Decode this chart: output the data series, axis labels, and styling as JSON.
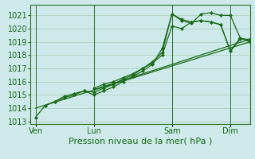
{
  "background_color": "#cde9e9",
  "grid_color": "#aaccbb",
  "line_color": "#1a6b1a",
  "marker_color": "#1a6b1a",
  "xlabel": "Pression niveau de la mer( hPa )",
  "xlabel_fontsize": 8,
  "ylabel_fontsize": 7,
  "ylim": [
    1012.8,
    1021.8
  ],
  "yticks": [
    1013,
    1014,
    1015,
    1016,
    1017,
    1018,
    1019,
    1020,
    1021
  ],
  "xtick_labels": [
    "Ven",
    "Lun",
    "Sam",
    "Dim"
  ],
  "xtick_positions": [
    0,
    36,
    84,
    120
  ],
  "xlim": [
    -3,
    132
  ],
  "vline_positions": [
    0,
    36,
    84,
    120
  ],
  "series": [
    {
      "x": [
        0,
        6,
        12,
        18,
        24,
        30,
        36,
        42,
        48,
        54,
        60,
        66,
        72,
        78,
        84,
        90,
        96,
        102,
        108,
        114,
        120,
        126,
        132
      ],
      "y": [
        1013.3,
        1014.2,
        1014.5,
        1014.8,
        1015.0,
        1015.3,
        1015.0,
        1015.3,
        1015.6,
        1016.0,
        1016.4,
        1016.8,
        1017.3,
        1018.5,
        1021.1,
        1020.6,
        1020.4,
        1021.1,
        1021.2,
        1021.0,
        1021.0,
        1019.3,
        1019.0
      ]
    },
    {
      "x": [
        6,
        12,
        18,
        24,
        30,
        36,
        42,
        48,
        54,
        60,
        66,
        72,
        78,
        84,
        90,
        96,
        102,
        108,
        114,
        120,
        126,
        132
      ],
      "y": [
        1014.2,
        1014.5,
        1014.9,
        1015.1,
        1015.3,
        1015.2,
        1015.5,
        1015.8,
        1016.2,
        1016.5,
        1017.0,
        1017.5,
        1018.2,
        1021.1,
        1020.7,
        1020.5,
        1020.6,
        1020.5,
        1020.3,
        1018.3,
        1019.3,
        1019.1
      ]
    },
    {
      "x": [
        36,
        42,
        48,
        54,
        60,
        66,
        72,
        78,
        84,
        90,
        96,
        102,
        108,
        114,
        120,
        126,
        132
      ],
      "y": [
        1015.5,
        1015.8,
        1016.0,
        1016.3,
        1016.6,
        1017.0,
        1017.4,
        1018.0,
        1020.2,
        1020.0,
        1020.5,
        1020.6,
        1020.5,
        1020.3,
        1018.3,
        1019.2,
        1019.2
      ]
    },
    {
      "x": [
        0,
        132
      ],
      "y": [
        1014.0,
        1019.0
      ]
    },
    {
      "x": [
        36,
        132
      ],
      "y": [
        1015.4,
        1019.2
      ]
    }
  ]
}
